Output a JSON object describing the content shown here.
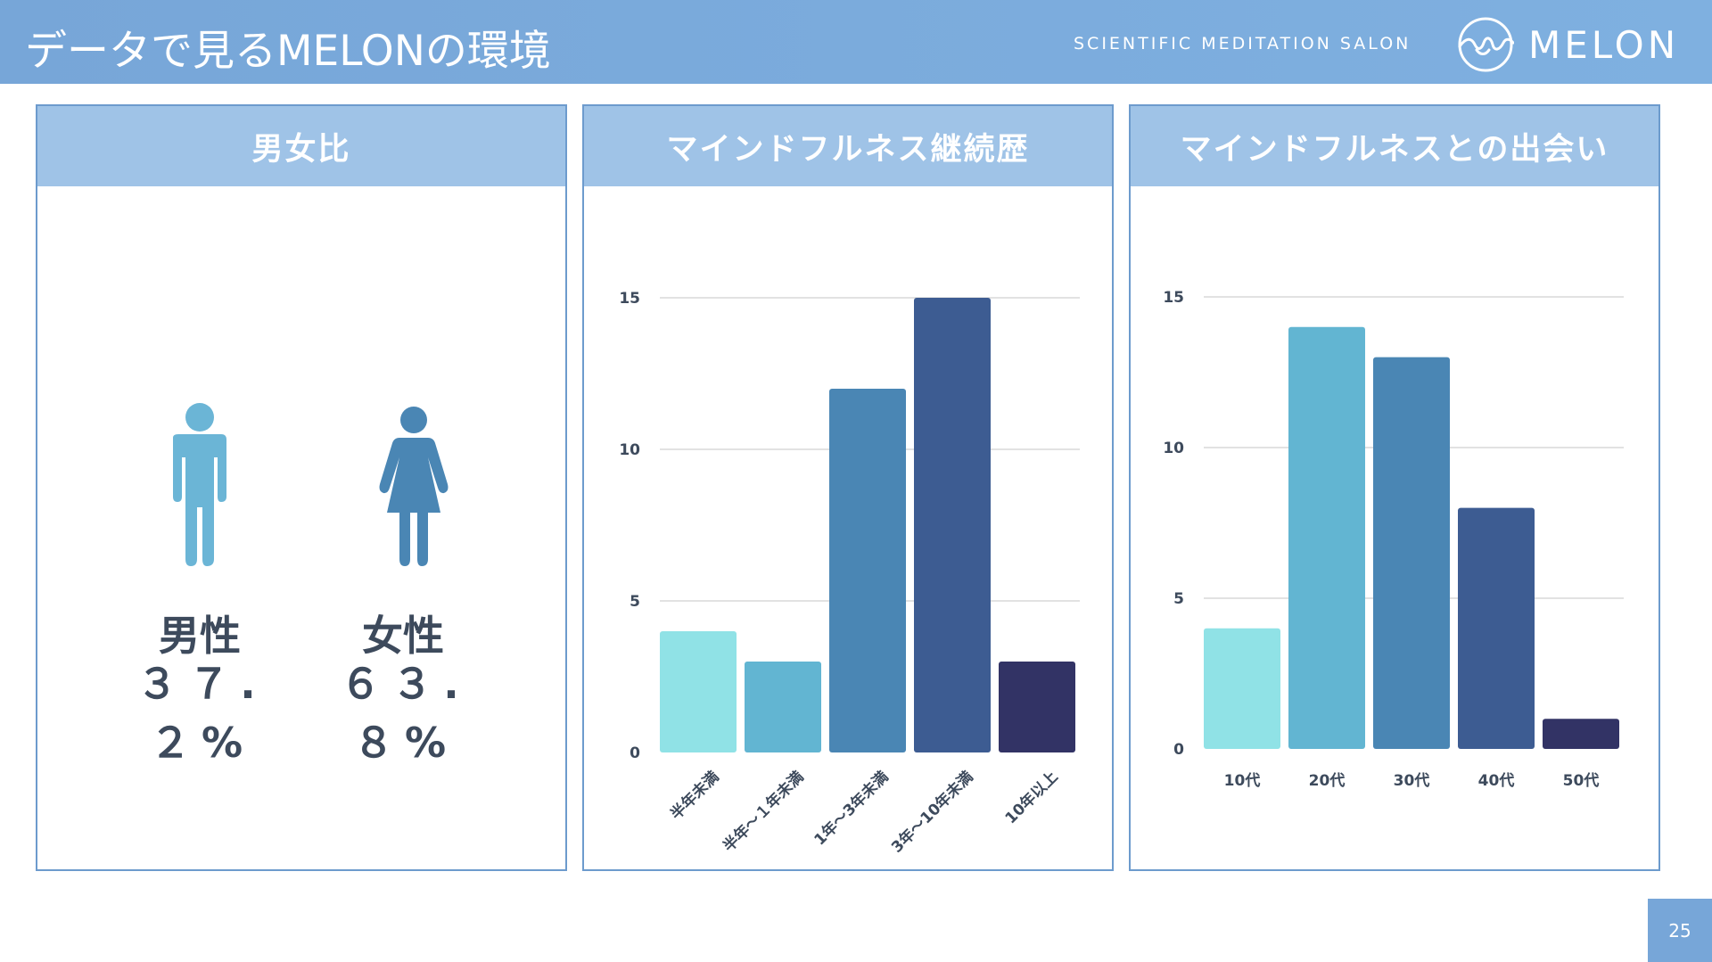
{
  "header": {
    "title": "データで見るMELONの環境",
    "tagline": "SCIENTIFIC MEDITATION SALON",
    "logo_text": "MELON"
  },
  "panels": {
    "gender": {
      "title": "男女比",
      "male_label": "男性",
      "male_pct": "３７.２%",
      "female_label": "女性",
      "female_pct": "６３.８%",
      "male_color": "#6bb5d6",
      "female_color": "#4a86b4"
    },
    "duration": {
      "title": "マインドフルネス継続歴"
    },
    "encounter": {
      "title": "マインドフルネスとの出会い"
    }
  },
  "chart_data": [
    {
      "type": "bar",
      "categories": [
        "半年未満",
        "半年〜１年未満",
        "1年〜3年未満",
        "3年〜10年未満",
        "10年以上"
      ],
      "values": [
        4,
        3,
        12,
        15,
        3
      ],
      "colors": [
        "#90e2e6",
        "#62b5d2",
        "#4a86b4",
        "#3d5c92",
        "#323365"
      ],
      "yticks": [
        0,
        5,
        10,
        15
      ],
      "ylim": [
        0,
        15
      ],
      "grid": true,
      "label_rotation": -45
    },
    {
      "type": "bar",
      "categories": [
        "10代",
        "20代",
        "30代",
        "40代",
        "50代"
      ],
      "values": [
        4,
        14,
        13,
        8,
        1
      ],
      "colors": [
        "#90e2e6",
        "#62b5d2",
        "#4a86b4",
        "#3d5c92",
        "#323365"
      ],
      "yticks": [
        0,
        5,
        10,
        15
      ],
      "ylim": [
        0,
        15
      ],
      "grid": true,
      "label_rotation": 0
    }
  ],
  "page_number": "25"
}
